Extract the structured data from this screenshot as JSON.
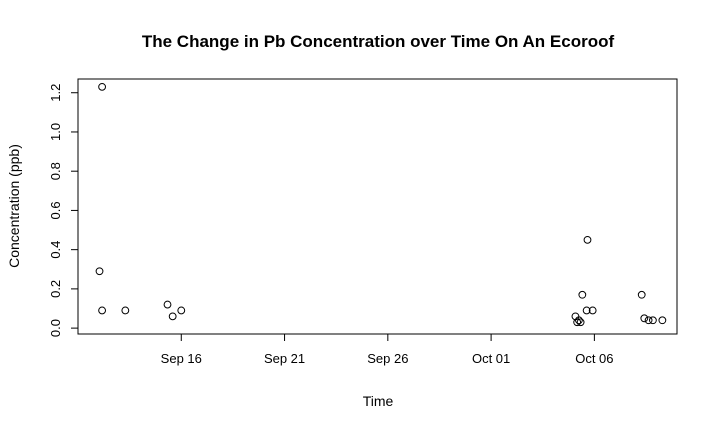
{
  "chart_data": {
    "type": "scatter",
    "title": "The Change in Pb Concentration over Time On An Ecoroof",
    "xlabel": "Time",
    "ylabel": "Concentration (ppb)",
    "x_axis_kind": "date",
    "xlim": [
      "2011-09-11",
      "2011-10-10"
    ],
    "ylim": [
      -0.03,
      1.27
    ],
    "x_ticks": [
      {
        "value": "2011-09-16",
        "label": "Sep 16"
      },
      {
        "value": "2011-09-21",
        "label": "Sep 21"
      },
      {
        "value": "2011-09-26",
        "label": "Sep 26"
      },
      {
        "value": "2011-10-01",
        "label": "Oct 01"
      },
      {
        "value": "2011-10-06",
        "label": "Oct 06"
      }
    ],
    "y_ticks": [
      0.0,
      0.2,
      0.4,
      0.6,
      0.8,
      1.0,
      1.2
    ],
    "y_tick_labels": [
      "0.0",
      "0.2",
      "0.4",
      "0.6",
      "0.8",
      "1.0",
      "1.2"
    ],
    "grid": false,
    "points": [
      {
        "x": "2011-09-12 01:00",
        "y": 0.29
      },
      {
        "x": "2011-09-12 04:00",
        "y": 1.23
      },
      {
        "x": "2011-09-12 04:00",
        "y": 0.09
      },
      {
        "x": "2011-09-13 07:00",
        "y": 0.09
      },
      {
        "x": "2011-09-15 08:00",
        "y": 0.12
      },
      {
        "x": "2011-09-15 14:00",
        "y": 0.06
      },
      {
        "x": "2011-09-16 00:00",
        "y": 0.09
      },
      {
        "x": "2011-10-05 02:00",
        "y": 0.06
      },
      {
        "x": "2011-10-05 04:00",
        "y": 0.03
      },
      {
        "x": "2011-10-05 06:00",
        "y": 0.04
      },
      {
        "x": "2011-10-05 08:00",
        "y": 0.03
      },
      {
        "x": "2011-10-05 10:00",
        "y": 0.17
      },
      {
        "x": "2011-10-05 16:00",
        "y": 0.45
      },
      {
        "x": "2011-10-05 15:00",
        "y": 0.09
      },
      {
        "x": "2011-10-05 22:00",
        "y": 0.09
      },
      {
        "x": "2011-10-08 07:00",
        "y": 0.17
      },
      {
        "x": "2011-10-08 10:00",
        "y": 0.05
      },
      {
        "x": "2011-10-08 15:00",
        "y": 0.04
      },
      {
        "x": "2011-10-08 20:00",
        "y": 0.04
      },
      {
        "x": "2011-10-09 07:00",
        "y": 0.04
      }
    ]
  }
}
